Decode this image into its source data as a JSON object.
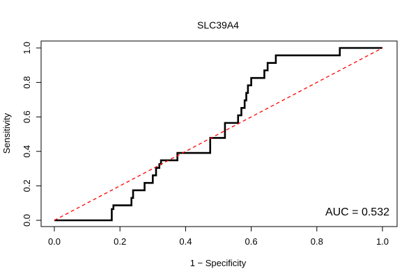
{
  "chart_data": {
    "type": "line",
    "title": "SLC39A4",
    "xlabel": "1 − Specificity",
    "ylabel": "Sensitivity",
    "xlim": [
      0,
      1
    ],
    "ylim": [
      0,
      1
    ],
    "xticks": [
      0.0,
      0.2,
      0.4,
      0.6,
      0.8,
      1.0
    ],
    "xtick_labels": [
      "0.0",
      "0.2",
      "0.4",
      "0.6",
      "0.8",
      "1.0"
    ],
    "yticks": [
      0.0,
      0.2,
      0.4,
      0.6,
      0.8,
      1.0
    ],
    "ytick_labels": [
      "0.0",
      "0.2",
      "0.4",
      "0.6",
      "0.8",
      "1.0"
    ],
    "grid": false,
    "annotation": "AUC = 0.532",
    "series": [
      {
        "color": "#000000",
        "style": "solid",
        "x": [
          0.0,
          0.175,
          0.175,
          0.18,
          0.18,
          0.235,
          0.235,
          0.24,
          0.24,
          0.275,
          0.275,
          0.3,
          0.3,
          0.31,
          0.31,
          0.32,
          0.32,
          0.325,
          0.325,
          0.375,
          0.375,
          0.475,
          0.475,
          0.52,
          0.52,
          0.56,
          0.56,
          0.57,
          0.57,
          0.58,
          0.58,
          0.585,
          0.585,
          0.59,
          0.59,
          0.595,
          0.595,
          0.6,
          0.6,
          0.61,
          0.61,
          0.64,
          0.64,
          0.65,
          0.65,
          0.675,
          0.675,
          0.87,
          0.87,
          1.0
        ],
        "y": [
          0.0,
          0.0,
          0.065,
          0.065,
          0.087,
          0.087,
          0.13,
          0.13,
          0.174,
          0.174,
          0.217,
          0.217,
          0.261,
          0.261,
          0.304,
          0.304,
          0.326,
          0.326,
          0.348,
          0.348,
          0.391,
          0.391,
          0.478,
          0.478,
          0.565,
          0.565,
          0.609,
          0.609,
          0.652,
          0.652,
          0.696,
          0.696,
          0.739,
          0.739,
          0.783,
          0.783,
          0.783,
          0.783,
          0.826,
          0.826,
          0.826,
          0.826,
          0.87,
          0.87,
          0.913,
          0.913,
          0.957,
          0.957,
          1.0,
          1.0
        ]
      },
      {
        "color": "#ff0000",
        "style": "dashed",
        "x": [
          0.0,
          1.0
        ],
        "y": [
          0.0,
          1.0
        ]
      }
    ]
  }
}
